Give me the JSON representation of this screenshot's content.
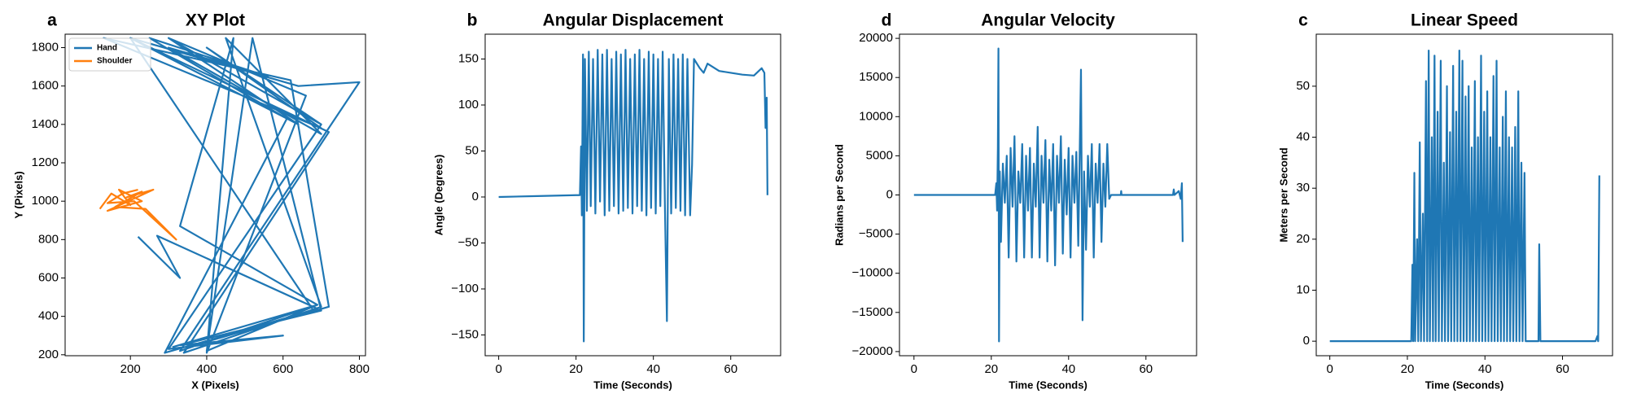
{
  "chart_data": [
    {
      "type": "line",
      "label": "a",
      "title": "XY Plot",
      "x_label": "X (Pixels)",
      "y_label": "Y (Pixels)",
      "legend": "upper left",
      "xlim": [
        29,
        816
      ],
      "xticks": [
        200,
        400,
        600,
        800
      ],
      "ylim": [
        195,
        1870
      ],
      "yticks": [
        200,
        400,
        600,
        800,
        1000,
        1200,
        1400,
        1600,
        1800
      ],
      "series": [
        {
          "name": "Hand",
          "color": "#1f77b4",
          "x": [
            220,
            330,
            270,
            690,
            350,
            720,
            620,
            130,
            700,
            400,
            700,
            300,
            640,
            200,
            720,
            340,
            700,
            450,
            700,
            300,
            560,
            250,
            610,
            290,
            680,
            200,
            640,
            800,
            330,
            690,
            330,
            470,
            400,
            660,
            300,
            700,
            300,
            600,
            330,
            700,
            520,
            400,
            690,
            310
          ],
          "values": [
            815,
            600,
            820,
            440,
            240,
            450,
            1630,
            1850,
            1380,
            1800,
            1400,
            1850,
            1400,
            1850,
            1360,
            210,
            450,
            1850,
            1350,
            1800,
            1650,
            1850,
            1430,
            210,
            430,
            1850,
            1600,
            1620,
            220,
            460,
            870,
            1850,
            210,
            1550,
            1850,
            1400,
            230,
            300,
            250,
            430,
            1850,
            220,
            460,
            240
          ]
        },
        {
          "name": "Shoulder",
          "color": "#ff7f0e",
          "x": [
            120,
            150,
            200,
            170,
            230,
            140,
            260,
            190,
            230,
            160,
            240,
            320,
            210,
            140,
            180,
            220
          ],
          "values": [
            960,
            1040,
            980,
            1060,
            1000,
            950,
            1060,
            1020,
            1050,
            970,
            960,
            800,
            1000,
            990,
            1040,
            1060
          ]
        }
      ]
    },
    {
      "type": "line",
      "label": "b",
      "title": "Angular Displacement",
      "x_label": "Time (Seconds)",
      "y_label": "Angle (Degrees)",
      "xlim": [
        -3.5,
        72.9
      ],
      "xticks": [
        0,
        20,
        40,
        60
      ],
      "ylim": [
        -172.6,
        177
      ],
      "yticks": [
        {
          "value": -150,
          "label": "−150"
        },
        {
          "value": -100,
          "label": "−100"
        },
        {
          "value": -50,
          "label": "−50"
        },
        0,
        50,
        100,
        150
      ],
      "series": [
        {
          "color": "#1f77b4",
          "x": [
            0,
            10,
            20,
            21,
            21.3,
            21.5,
            21.8,
            22,
            22.3,
            22.8,
            23.3,
            23.8,
            24.4,
            25,
            25.6,
            26.2,
            26.8,
            27.4,
            28,
            28.6,
            29.2,
            29.8,
            30.4,
            31,
            31.6,
            32.2,
            32.8,
            33.4,
            34,
            34.6,
            35.2,
            35.8,
            36.4,
            37,
            37.6,
            38.2,
            38.8,
            39.4,
            40,
            40.6,
            41.2,
            41.8,
            42.4,
            43,
            43.5,
            44,
            44.6,
            45.2,
            45.8,
            46.4,
            47,
            47.6,
            48.2,
            48.8,
            49.5,
            50,
            50.5,
            52,
            53,
            54,
            57,
            60,
            63,
            66,
            68,
            68.7,
            69,
            69.3,
            69.5
          ],
          "values": [
            0,
            1,
            2,
            2,
            55,
            -20,
            155,
            -157,
            150,
            -15,
            158,
            -10,
            150,
            -18,
            160,
            -5,
            155,
            -20,
            160,
            -15,
            150,
            -10,
            158,
            -18,
            155,
            -15,
            160,
            -12,
            150,
            -18,
            155,
            -10,
            160,
            -15,
            150,
            -20,
            158,
            -12,
            155,
            -18,
            150,
            -10,
            158,
            -15,
            -135,
            150,
            -18,
            155,
            -12,
            150,
            -15,
            155,
            -20,
            150,
            -20,
            35,
            150,
            140,
            135,
            145,
            137,
            135,
            133,
            132,
            140,
            135,
            75,
            108,
            2
          ]
        }
      ]
    },
    {
      "type": "line",
      "label": "d",
      "title": "Angular Velocity",
      "x_label": "Time (Seconds)",
      "y_label": "Radians per Second",
      "xlim": [
        -3.75,
        73.1
      ],
      "xticks": [
        0,
        20,
        40,
        60
      ],
      "ylim": [
        -20530,
        20530
      ],
      "yticks": [
        {
          "value": -20000,
          "label": "−20000"
        },
        {
          "value": -15000,
          "label": "−15000"
        },
        {
          "value": -10000,
          "label": "−10000"
        },
        {
          "value": -5000,
          "label": "−5000"
        },
        0,
        5000,
        10000,
        15000,
        20000
      ],
      "series": [
        {
          "color": "#1f77b4",
          "x": [
            0,
            21,
            21.3,
            21.5,
            21.7,
            21.85,
            22,
            22.2,
            22.5,
            23,
            23.5,
            24,
            24.5,
            25,
            25.5,
            26,
            26.5,
            27,
            27.5,
            28,
            28.5,
            29,
            29.5,
            30,
            30.5,
            31,
            31.5,
            32,
            32.5,
            33,
            33.5,
            34,
            34.5,
            35,
            35.5,
            36,
            36.5,
            37,
            37.5,
            38,
            38.5,
            39,
            39.5,
            40,
            40.5,
            41,
            41.5,
            42,
            42.5,
            43.2,
            43.6,
            44,
            44.5,
            45,
            45.5,
            46,
            46.5,
            47,
            47.5,
            48,
            48.5,
            49,
            49.5,
            50,
            50.5,
            51,
            53.5,
            53.6,
            53.7,
            67,
            67.2,
            67.4,
            68.5,
            69,
            69.3,
            69.5
          ],
          "values": [
            0,
            0,
            1500,
            -2000,
            6000,
            18700,
            -18700,
            3000,
            -6000,
            4000,
            -1000,
            5000,
            -8000,
            6000,
            -1500,
            7500,
            -8500,
            3000,
            -1000,
            6500,
            -8000,
            5000,
            -2000,
            6000,
            -8000,
            4000,
            -1500,
            8700,
            -8000,
            5000,
            -1000,
            7000,
            -8500,
            4500,
            -2000,
            6500,
            -9000,
            5000,
            -1000,
            7500,
            -7500,
            4500,
            -2500,
            6000,
            -8000,
            5000,
            -1000,
            5500,
            -6500,
            16000,
            -16000,
            3000,
            -7000,
            5000,
            -1500,
            6500,
            -8000,
            4000,
            -1000,
            6500,
            -6000,
            4000,
            -1500,
            6500,
            -500,
            0,
            0,
            500,
            0,
            0,
            700,
            0,
            500,
            -500,
            1500,
            -6000
          ]
        }
      ]
    },
    {
      "type": "line",
      "label": "c",
      "title": "Linear Speed",
      "x_label": "Time (Seconds)",
      "y_label": "Meters per Second",
      "xlim": [
        -3.5,
        72.9
      ],
      "xticks": [
        0,
        20,
        40,
        60
      ],
      "ylim": [
        -2.85,
        60.2
      ],
      "yticks": [
        0,
        10,
        20,
        30,
        40,
        50
      ],
      "series": [
        {
          "color": "#1f77b4",
          "x": [
            0,
            21,
            21.3,
            21.5,
            21.8,
            22,
            22.5,
            22.8,
            23.2,
            23.5,
            24,
            24.3,
            24.8,
            25.1,
            25.5,
            25.8,
            26.3,
            26.6,
            27,
            27.3,
            27.8,
            28.1,
            28.6,
            28.9,
            29.4,
            29.7,
            30.2,
            30.5,
            31,
            31.3,
            31.8,
            32.1,
            32.6,
            32.9,
            33.4,
            33.7,
            34.2,
            34.5,
            35,
            35.3,
            35.8,
            36.1,
            36.6,
            36.9,
            37.4,
            37.7,
            38.2,
            38.5,
            39,
            39.3,
            39.8,
            40.1,
            40.6,
            40.9,
            41.4,
            41.7,
            42.2,
            42.5,
            43,
            43.3,
            43.8,
            44.1,
            44.6,
            44.9,
            45.4,
            45.7,
            46.2,
            46.5,
            47,
            47.3,
            47.8,
            48.1,
            48.6,
            48.9,
            49.4,
            49.7,
            50.2,
            50.5,
            51,
            53.8,
            54,
            54.3,
            68.5,
            69,
            69.2,
            69.5
          ],
          "values": [
            0,
            0,
            15,
            0,
            33,
            0,
            20,
            0,
            39,
            0,
            25,
            0,
            51,
            0,
            57,
            0,
            40,
            0,
            56,
            0,
            45,
            0,
            55,
            0,
            35,
            0,
            50,
            0,
            41,
            0,
            54,
            0,
            45,
            0,
            57,
            0,
            55,
            0,
            48,
            0,
            50,
            0,
            38,
            0,
            51,
            0,
            40,
            0,
            56,
            0,
            45,
            0,
            49,
            0,
            40,
            0,
            52,
            0,
            55,
            0,
            38,
            0,
            44,
            0,
            49,
            0,
            40,
            0,
            38,
            0,
            42,
            0,
            49,
            0,
            35,
            0,
            33,
            0,
            0,
            0,
            19,
            0,
            0,
            1,
            0,
            32.5
          ]
        }
      ]
    }
  ]
}
